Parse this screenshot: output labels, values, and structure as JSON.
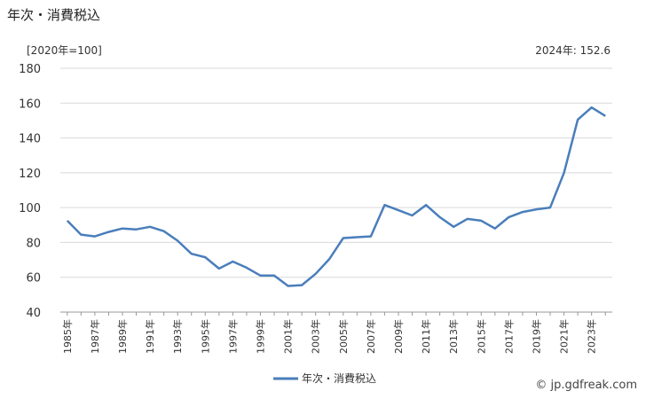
{
  "title": "年次・消費税込",
  "unit_label": "[2020年=100]",
  "annotation": "2024年: 152.6",
  "credit": "© jp.gdfreak.com",
  "chart_data": {
    "type": "line",
    "title": "年次・消費税込",
    "ylabel": "[2020年=100]",
    "ylim": [
      40,
      180
    ],
    "yticks": [
      40,
      60,
      80,
      100,
      120,
      140,
      160,
      180
    ],
    "grid": true,
    "legend_position": "bottom-center",
    "x": [
      1985,
      1986,
      1987,
      1988,
      1989,
      1990,
      1991,
      1992,
      1993,
      1994,
      1995,
      1996,
      1997,
      1998,
      1999,
      2000,
      2001,
      2002,
      2003,
      2004,
      2005,
      2006,
      2007,
      2008,
      2009,
      2010,
      2011,
      2012,
      2013,
      2014,
      2015,
      2016,
      2017,
      2018,
      2019,
      2020,
      2021,
      2022,
      2023,
      2024
    ],
    "xtick_labels": [
      "1985年",
      "1987年",
      "1989年",
      "1991年",
      "1993年",
      "1995年",
      "1997年",
      "1999年",
      "2001年",
      "2003年",
      "2005年",
      "2007年",
      "2009年",
      "2011年",
      "2013年",
      "2015年",
      "2017年",
      "2019年",
      "2021年",
      "2023年"
    ],
    "series": [
      {
        "name": "年次・消費税込",
        "color": "#4a7ebb",
        "values": [
          92.5,
          84.5,
          83.5,
          86,
          88,
          87.5,
          89,
          86.5,
          81,
          73.5,
          71.5,
          65,
          69,
          65.5,
          61,
          61,
          55,
          55.5,
          62,
          70.5,
          82.5,
          83,
          83.5,
          101.5,
          98.5,
          95.5,
          101.5,
          94.5,
          89,
          93.5,
          92.5,
          88,
          94.5,
          97.5,
          99,
          100,
          120,
          150.5,
          157.5,
          152.6
        ]
      }
    ]
  }
}
